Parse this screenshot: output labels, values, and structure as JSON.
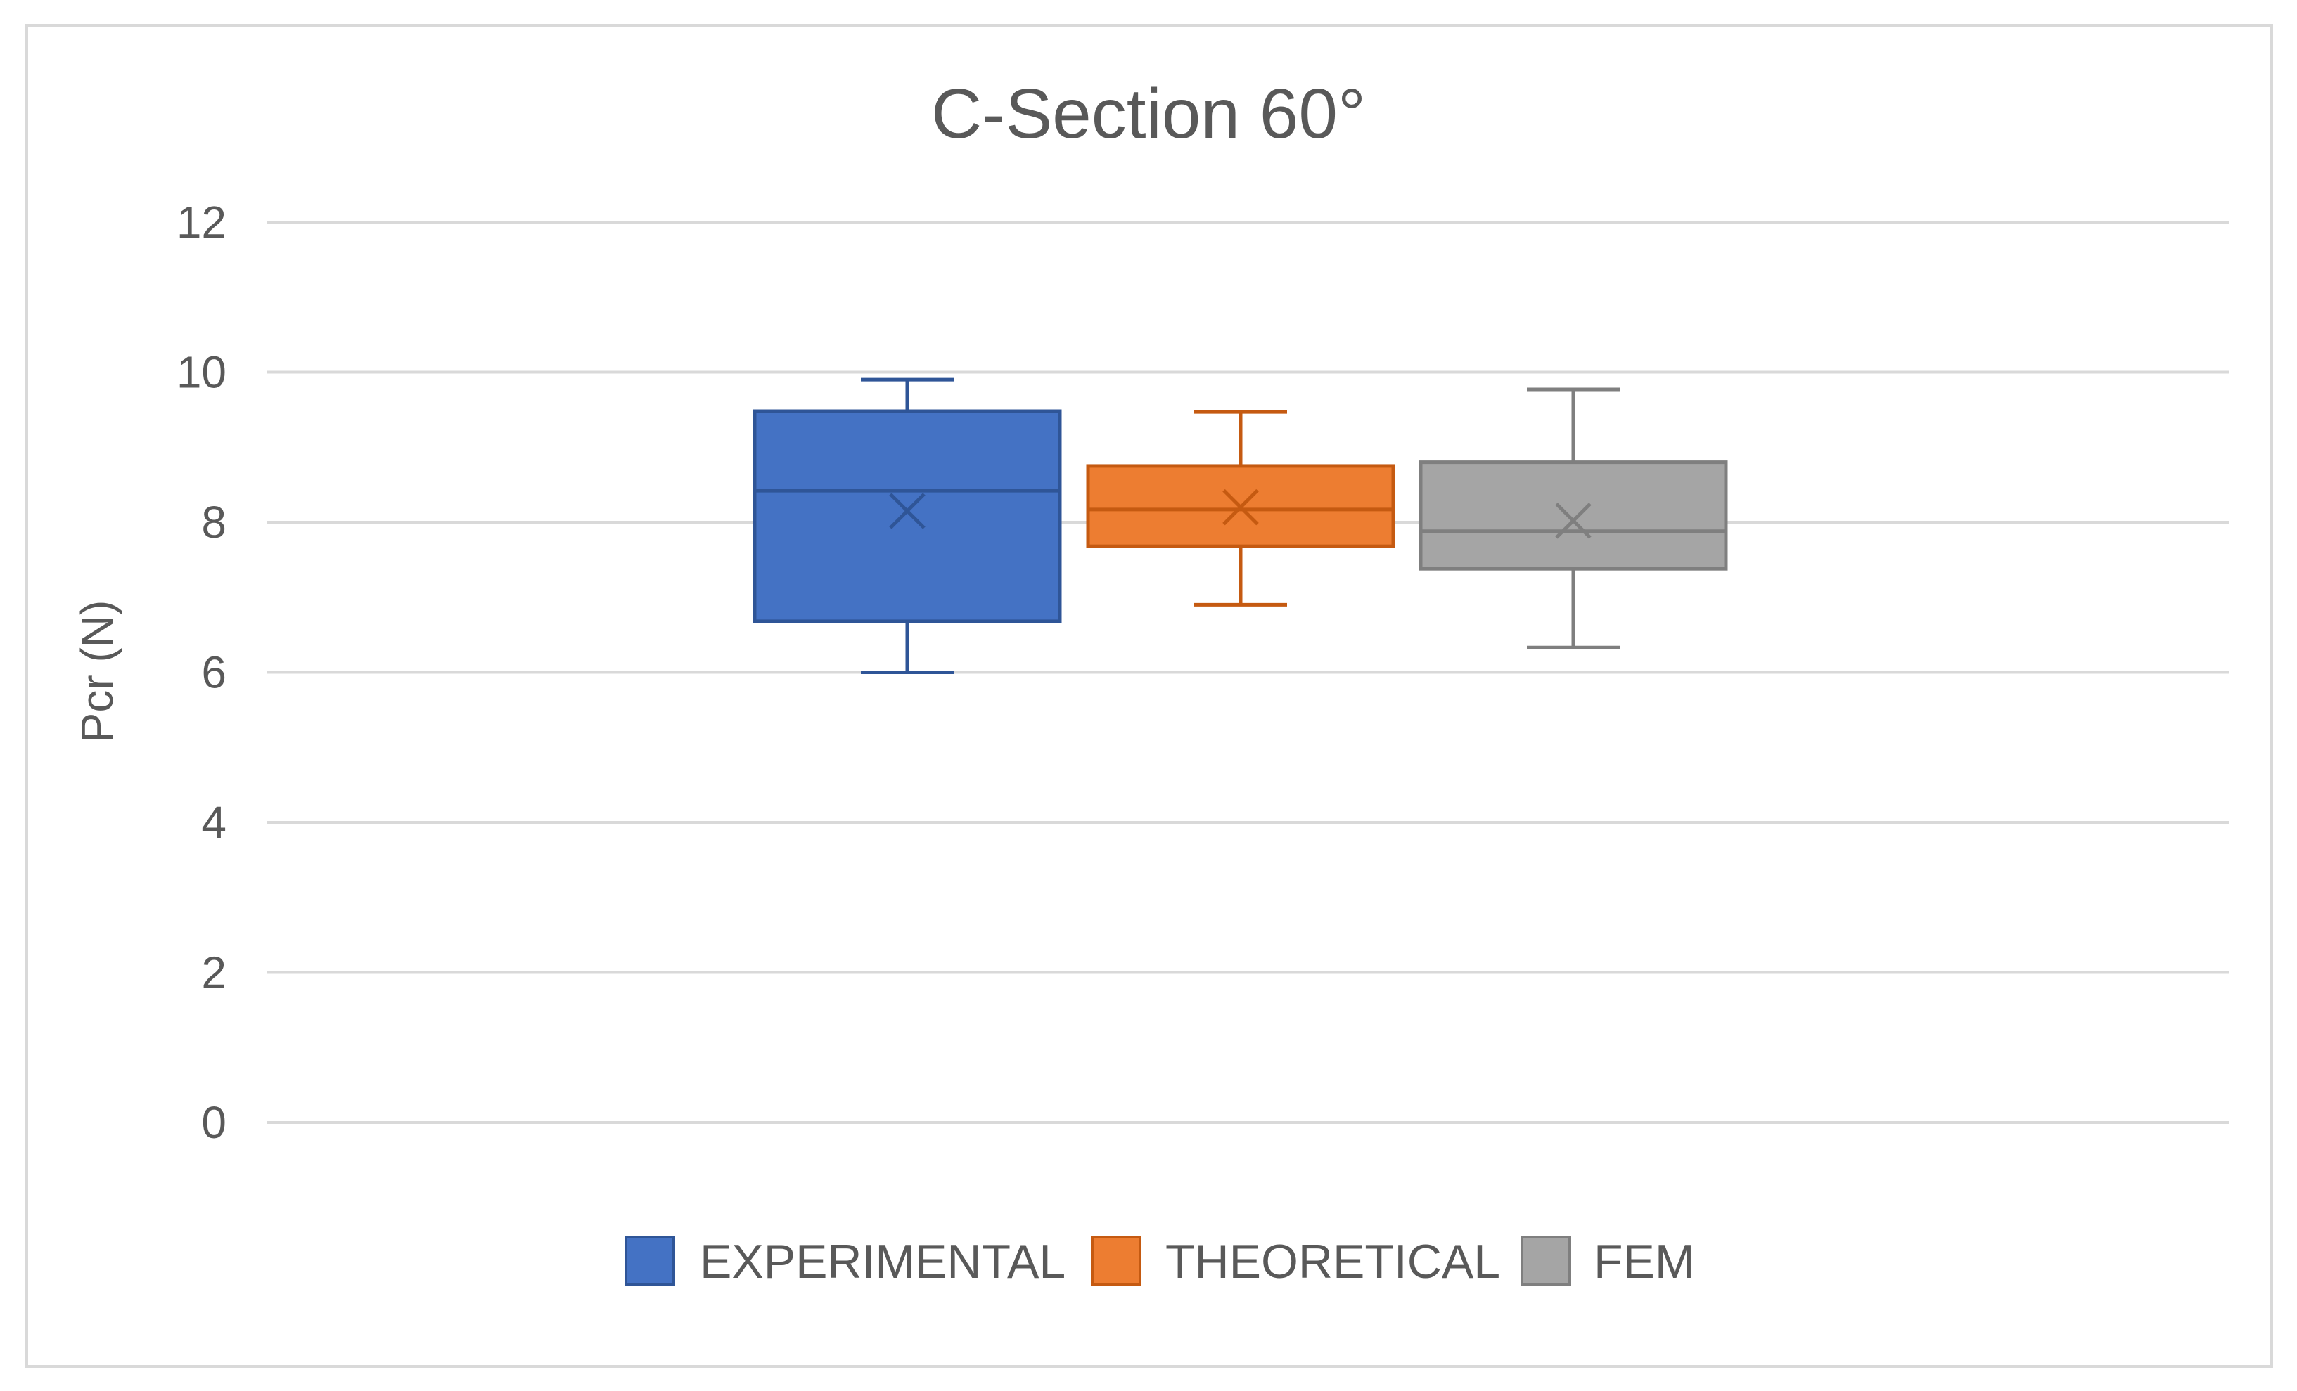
{
  "chart_data": {
    "type": "boxplot",
    "title": "C-Section 60°",
    "ylabel": "Pcr (N)",
    "xlabel": "",
    "ylim": [
      0,
      12
    ],
    "yticks": [
      0,
      2,
      4,
      6,
      8,
      10,
      12
    ],
    "grid": true,
    "legend_position": "bottom",
    "series": [
      {
        "name": "EXPERIMENTAL",
        "color": "#4472c4",
        "stroke": "#2f5597",
        "min": 6.0,
        "q1": 6.68,
        "median": 8.42,
        "mean": 8.15,
        "q3": 9.48,
        "max": 9.9
      },
      {
        "name": "THEORETICAL",
        "color": "#ed7d31",
        "stroke": "#c55a11",
        "min": 6.9,
        "q1": 7.68,
        "median": 8.17,
        "mean": 8.2,
        "q3": 8.75,
        "max": 9.47
      },
      {
        "name": "FEM",
        "color": "#a5a5a5",
        "stroke": "#7f7f7f",
        "min": 6.33,
        "q1": 7.38,
        "median": 7.88,
        "mean": 8.02,
        "q3": 8.8,
        "max": 9.77
      }
    ]
  }
}
